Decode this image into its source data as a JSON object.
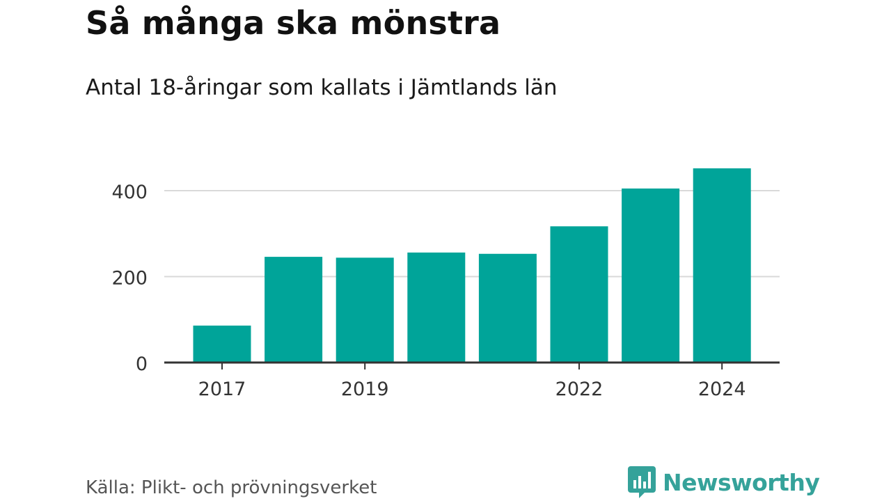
{
  "title": "Så många ska mönstra",
  "subtitle": "Antal 18-åringar som kallats i Jämtlands län",
  "source": "Källa: Plikt- och prövningsverket",
  "brand": "Newsworthy",
  "colors": {
    "bar": "#00a499",
    "grid": "#d9d9d9",
    "axis": "#333333",
    "brand": "#35a29a"
  },
  "chart_data": {
    "type": "bar",
    "categories": [
      "2017",
      "2018",
      "2019",
      "2020",
      "2021",
      "2022",
      "2023",
      "2024"
    ],
    "values": [
      86,
      246,
      244,
      256,
      253,
      317,
      405,
      452
    ],
    "x_tick_labels": [
      "2017",
      "2019",
      "2022",
      "2024"
    ],
    "y_ticks": [
      0,
      200,
      400
    ],
    "ylim": [
      0,
      480
    ],
    "grid": true,
    "xlabel": "",
    "ylabel": ""
  }
}
